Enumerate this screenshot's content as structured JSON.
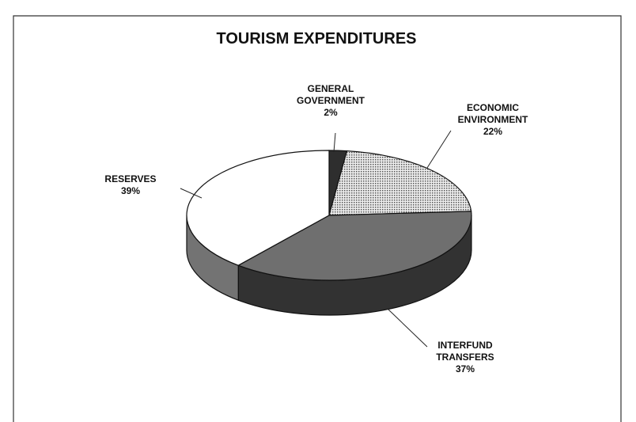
{
  "chart_data": {
    "type": "pie",
    "title": "TOURISM EXPENDITURES",
    "categories": [
      "GENERAL GOVERNMENT",
      "ECONOMIC ENVIRONMENT",
      "INTERFUND TRANSFERS",
      "RESERVES"
    ],
    "values": [
      2,
      22,
      37,
      39
    ],
    "value_labels": [
      "2%",
      "22%",
      "37%",
      "39%"
    ],
    "colors": [
      "#2e2e2e",
      "#d4d4d4",
      "#6f6f6f",
      "#ffffff"
    ]
  }
}
